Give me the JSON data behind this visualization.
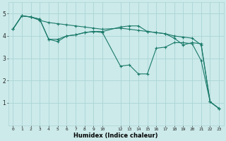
{
  "title": "",
  "xlabel": "Humidex (Indice chaleur)",
  "ylabel": "",
  "bg_color": "#cceaea",
  "grid_color": "#aad4d4",
  "line_color": "#1a7a6a",
  "xlim": [
    -0.5,
    23.5
  ],
  "ylim": [
    0,
    5.5
  ],
  "yticks": [
    1,
    2,
    3,
    4,
    5
  ],
  "xticks": [
    0,
    1,
    2,
    3,
    4,
    5,
    6,
    7,
    8,
    9,
    10,
    12,
    13,
    14,
    15,
    16,
    17,
    18,
    19,
    20,
    21,
    22,
    23
  ],
  "line1_x": [
    0,
    1,
    2,
    3,
    4,
    5,
    6,
    7,
    8,
    9,
    10,
    12,
    13,
    14,
    15,
    16,
    17,
    18,
    19,
    20,
    21,
    22,
    23
  ],
  "line1_y": [
    4.3,
    4.9,
    4.85,
    4.7,
    4.6,
    4.55,
    4.5,
    4.45,
    4.4,
    4.35,
    4.3,
    4.35,
    4.3,
    4.25,
    4.2,
    4.15,
    4.1,
    4.0,
    3.95,
    3.9,
    3.6,
    1.05,
    0.75
  ],
  "line2_x": [
    0,
    1,
    2,
    3,
    4,
    5,
    6,
    7,
    8,
    9,
    10,
    12,
    13,
    14,
    15,
    16,
    17,
    18,
    19,
    20,
    21,
    22,
    23
  ],
  "line2_y": [
    4.3,
    4.9,
    4.85,
    4.75,
    3.85,
    3.85,
    4.0,
    4.05,
    4.15,
    4.2,
    4.2,
    4.4,
    4.45,
    4.45,
    4.2,
    4.15,
    4.1,
    3.9,
    3.6,
    3.7,
    3.65,
    1.05,
    0.75
  ],
  "line3_x": [
    0,
    1,
    2,
    3,
    4,
    5,
    6,
    7,
    8,
    9,
    10,
    12,
    13,
    14,
    15,
    16,
    17,
    18,
    19,
    20,
    21,
    22,
    23
  ],
  "line3_y": [
    4.3,
    4.9,
    4.85,
    4.75,
    3.85,
    3.75,
    4.0,
    4.05,
    4.15,
    4.2,
    4.15,
    2.65,
    2.7,
    2.3,
    2.3,
    3.45,
    3.5,
    3.7,
    3.7,
    3.65,
    2.9,
    1.05,
    0.75
  ],
  "figwidth": 3.2,
  "figheight": 2.0,
  "dpi": 100
}
